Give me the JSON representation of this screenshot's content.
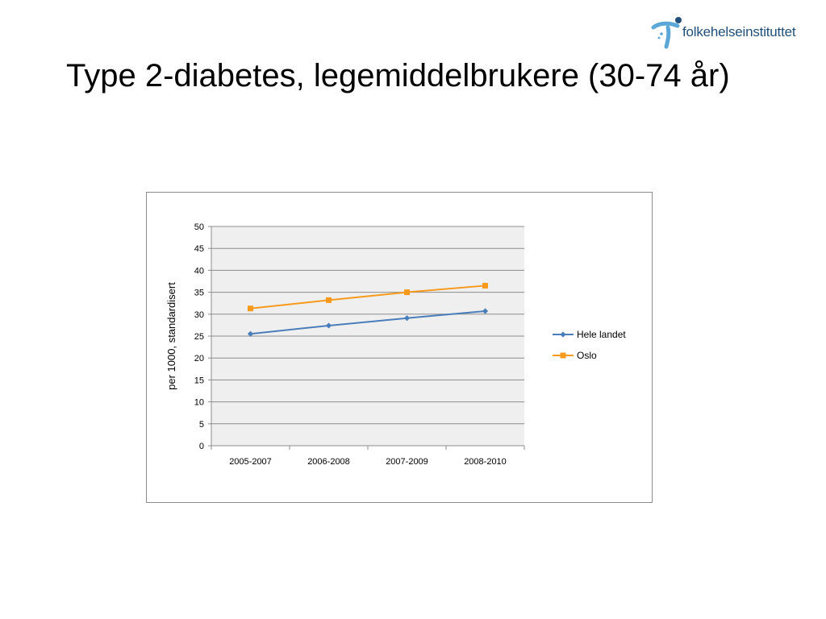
{
  "slide": {
    "title": "Type 2-diabetes, legemiddelbrukere (30-74 år)",
    "logo_text": "folkehelseinstituttet"
  },
  "colors": {
    "hele_landet": "#4a7ebb",
    "oslo": "#f79a1c",
    "plot_background": "#efefef",
    "gridline": "#8c8c8c",
    "logo_blue": "#1f4f7a",
    "logo_light_blue": "#5aa7d8"
  },
  "chart_data": {
    "type": "line",
    "title": "",
    "xlabel": "",
    "ylabel": "per 1000, standardisert",
    "categories": [
      "2005-2007",
      "2006-2008",
      "2007-2009",
      "2008-2010"
    ],
    "ylim": [
      0,
      50
    ],
    "yticks": [
      0,
      5,
      10,
      15,
      20,
      25,
      30,
      35,
      40,
      45,
      50
    ],
    "grid": true,
    "legend_position": "right",
    "series": [
      {
        "name": "Hele landet",
        "marker": "diamond",
        "color": "#4a7ebb",
        "values": [
          25.5,
          27.4,
          29.1,
          30.7
        ]
      },
      {
        "name": "Oslo",
        "marker": "square",
        "color": "#f79a1c",
        "values": [
          31.3,
          33.2,
          35.0,
          36.5
        ]
      }
    ]
  }
}
